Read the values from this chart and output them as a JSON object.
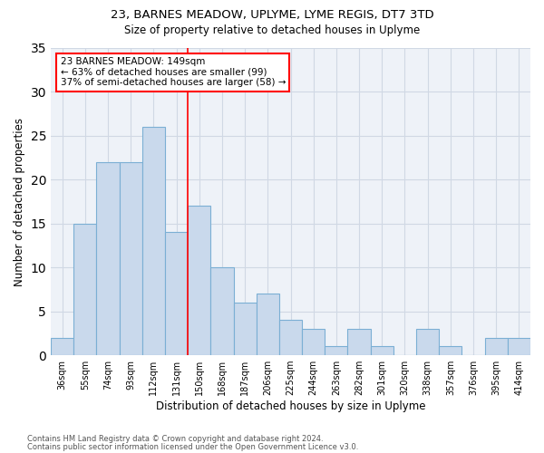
{
  "title1": "23, BARNES MEADOW, UPLYME, LYME REGIS, DT7 3TD",
  "title2": "Size of property relative to detached houses in Uplyme",
  "xlabel": "Distribution of detached houses by size in Uplyme",
  "ylabel": "Number of detached properties",
  "categories": [
    "36sqm",
    "55sqm",
    "74sqm",
    "93sqm",
    "112sqm",
    "131sqm",
    "150sqm",
    "168sqm",
    "187sqm",
    "206sqm",
    "225sqm",
    "244sqm",
    "263sqm",
    "282sqm",
    "301sqm",
    "320sqm",
    "338sqm",
    "357sqm",
    "376sqm",
    "395sqm",
    "414sqm"
  ],
  "values": [
    2,
    15,
    22,
    22,
    26,
    14,
    17,
    10,
    6,
    7,
    4,
    3,
    1,
    3,
    1,
    0,
    3,
    1,
    0,
    2,
    2
  ],
  "bar_color": "#c9d9ec",
  "bar_edge_color": "#7bafd4",
  "grid_color": "#d0d8e4",
  "background_color": "#eef2f8",
  "annotation_line1": "23 BARNES MEADOW: 149sqm",
  "annotation_line2": "← 63% of detached houses are smaller (99)",
  "annotation_line3": "37% of semi-detached houses are larger (58) →",
  "annotation_box_color": "white",
  "annotation_box_edge": "red",
  "vline_x": 5.5,
  "vline_color": "red",
  "ylim": [
    0,
    35
  ],
  "yticks": [
    0,
    5,
    10,
    15,
    20,
    25,
    30,
    35
  ],
  "footer1": "Contains HM Land Registry data © Crown copyright and database right 2024.",
  "footer2": "Contains public sector information licensed under the Open Government Licence v3.0."
}
